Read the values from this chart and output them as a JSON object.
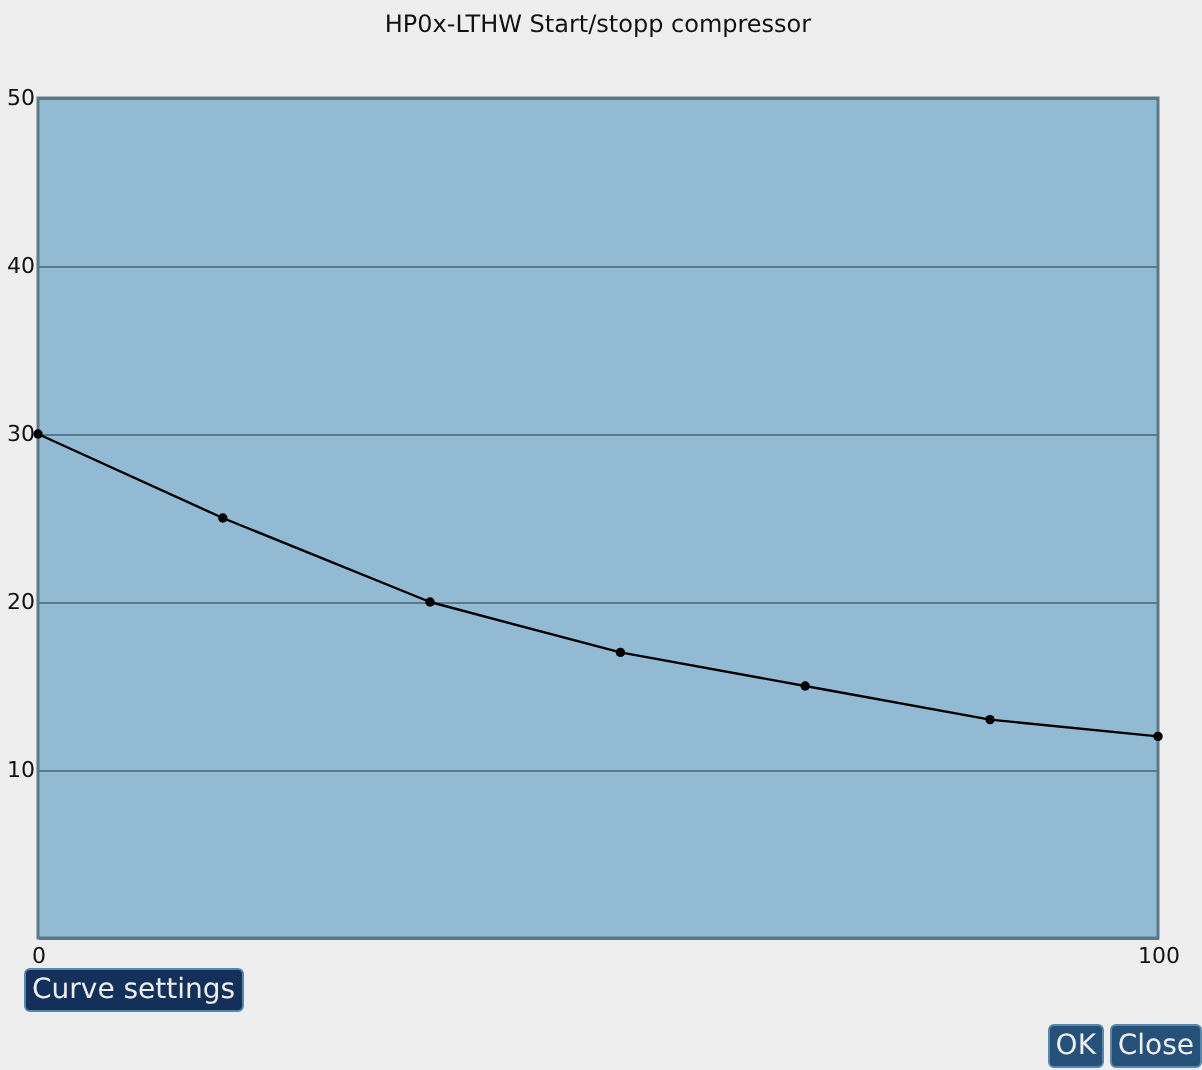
{
  "chart_data": {
    "type": "line",
    "title": "HP0x-LTHW Start/stopp compressor",
    "x": [
      0,
      16.5,
      35,
      52,
      68.5,
      85,
      100
    ],
    "series": [
      {
        "color": "#000000",
        "values": [
          30,
          25,
          20,
          17,
          15,
          13,
          12
        ]
      }
    ],
    "xlim": [
      0,
      100
    ],
    "xticks": [
      0,
      100
    ],
    "ylim": [
      0,
      50
    ],
    "yticks": [
      {
        "value": 0,
        "label": null
      },
      10,
      20,
      30,
      40,
      50
    ],
    "grid": "y",
    "marker": "circle",
    "line_style": "solid",
    "annotations": [
      "Curve settings",
      "OK",
      "Close"
    ]
  }
}
